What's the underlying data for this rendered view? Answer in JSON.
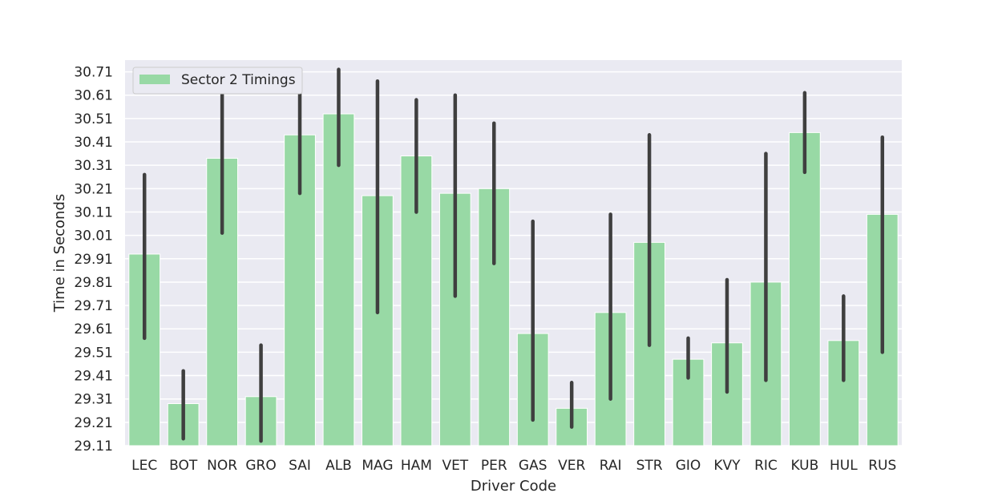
{
  "chart_data": {
    "type": "bar",
    "title": "",
    "xlabel": "Driver Code",
    "ylabel": "Time in Seconds",
    "categories": [
      "LEC",
      "BOT",
      "NOR",
      "GRO",
      "SAI",
      "ALB",
      "MAG",
      "HAM",
      "VET",
      "PER",
      "GAS",
      "VER",
      "RAI",
      "STR",
      "GIO",
      "KVY",
      "RIC",
      "KUB",
      "HUL",
      "RUS"
    ],
    "series": [
      {
        "name": "Sector 2 Timings",
        "color": "#98d9a5",
        "values": [
          29.93,
          29.29,
          30.34,
          29.32,
          30.44,
          30.53,
          30.18,
          30.35,
          30.19,
          30.21,
          29.59,
          29.27,
          29.68,
          29.98,
          29.48,
          29.55,
          29.81,
          30.45,
          29.56,
          30.1
        ],
        "error_low": [
          29.57,
          29.14,
          30.02,
          29.13,
          30.19,
          30.31,
          29.68,
          30.11,
          29.75,
          29.89,
          29.22,
          29.19,
          29.31,
          29.54,
          29.4,
          29.34,
          29.39,
          30.28,
          29.39,
          29.51
        ],
        "error_high": [
          30.27,
          29.43,
          30.66,
          29.54,
          30.66,
          30.72,
          30.67,
          30.59,
          30.61,
          30.49,
          30.07,
          29.38,
          30.1,
          30.44,
          29.57,
          29.82,
          30.36,
          30.62,
          29.75,
          30.43
        ]
      }
    ],
    "ylim": [
      29.11,
      30.76
    ],
    "yticks": [
      "29.11",
      "29.21",
      "29.31",
      "29.41",
      "29.51",
      "29.61",
      "29.71",
      "29.81",
      "29.91",
      "30.01",
      "30.11",
      "30.21",
      "30.31",
      "30.41",
      "30.51",
      "30.61",
      "30.71"
    ],
    "grid": true,
    "legend_position": "top-left",
    "colors": {
      "background": "#eaeaf2",
      "grid": "#ffffff",
      "errorbar": "#3f3f3f"
    }
  }
}
